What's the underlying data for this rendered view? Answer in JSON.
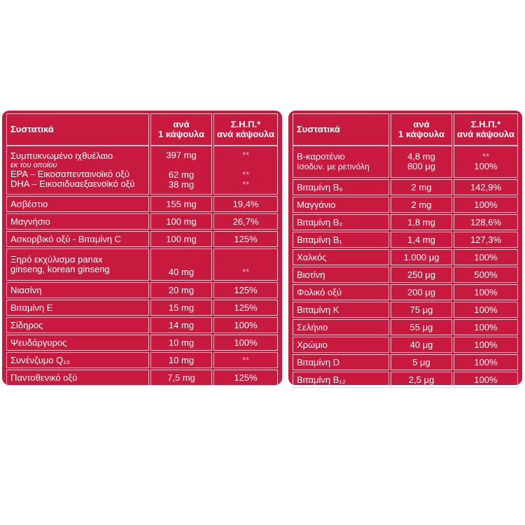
{
  "left": {
    "header": {
      "name": "Συστατικά",
      "amount": "ανά\n1 κάψουλα",
      "rdi": "Σ.Η.Π.*\nανά κάψουλα"
    },
    "row_fishoil": {
      "name1": "Συμπυκνωμένο ιχθυέλαιο",
      "name2": "εκ του οποίου",
      "name3": "EPA – Εικοσαπενταινοϊκό οξύ",
      "name4": "DHA – Εικοσιδυαεξαενοϊκό οξύ",
      "amt1": "397 mg",
      "amt2": "62 mg",
      "amt3": "38 mg",
      "rdi1": "**",
      "rdi2": "**",
      "rdi3": "**"
    },
    "rows": [
      {
        "name": "Ασβέστιο",
        "amount": "155 mg",
        "rdi": "19,4%"
      },
      {
        "name": "Μαγνήσιο",
        "amount": "100 mg",
        "rdi": "26,7%"
      },
      {
        "name": "Ασκορβικό οξύ - Βιταμίνη C",
        "amount": "100 mg",
        "rdi": "125%"
      }
    ],
    "row_ginseng": {
      "name1": "Ξηρό εκχύλισμα panax",
      "name2": "ginseng, korean ginseng",
      "amount": "40 mg",
      "rdi": "**"
    },
    "rows2": [
      {
        "name": "Νιασίνη",
        "amount": "20 mg",
        "rdi": "125%"
      },
      {
        "name": "Βιταμίνη Ε",
        "amount": "15 mg",
        "rdi": "125%"
      },
      {
        "name": "Σίδηρος",
        "amount": "14 mg",
        "rdi": "100%"
      },
      {
        "name": "Ψευδάργυρος",
        "amount": "10 mg",
        "rdi": "100%"
      },
      {
        "name": "Συνένζυμο Q₁₀",
        "amount": "10 mg",
        "rdi": "**"
      },
      {
        "name": "Παντοθενικό οξύ",
        "amount": "7,5 mg",
        "rdi": "125%"
      }
    ]
  },
  "right": {
    "header": {
      "name": "Συστατικά",
      "amount": "ανά\n1 κάψουλα",
      "rdi": "Σ.Η.Π.*\nανά κάψουλα"
    },
    "row_beta": {
      "name1": "Β-καροτένιο",
      "name2": "Ισοδυν. με ρετινόλη",
      "amt1": "4,8 mg",
      "amt2": "800 μg",
      "rdi1": "**",
      "rdi2": "100%"
    },
    "rows": [
      {
        "name": "Βιταμίνη Β₆",
        "amount": "2 mg",
        "rdi": "142,9%"
      },
      {
        "name": "Μαγγάνιο",
        "amount": "2 mg",
        "rdi": "100%"
      },
      {
        "name": "Βιταμίνη Β₂",
        "amount": "1,8 mg",
        "rdi": "128,6%"
      },
      {
        "name": "Βιταμίνη Β₁",
        "amount": "1,4 mg",
        "rdi": "127,3%"
      },
      {
        "name": "Χαλκός",
        "amount": "1.000 μg",
        "rdi": "100%"
      },
      {
        "name": "Βιοτίνη",
        "amount": "250 μg",
        "rdi": "500%"
      },
      {
        "name": "Φολικό οξύ",
        "amount": "200 μg",
        "rdi": "100%"
      },
      {
        "name": "Βιταμίνη Κ",
        "amount": "75 μg",
        "rdi": "100%"
      },
      {
        "name": "Σελήνιο",
        "amount": "55 μg",
        "rdi": "100%"
      },
      {
        "name": "Χρώμιο",
        "amount": "40 μg",
        "rdi": "100%"
      },
      {
        "name": "Βιταμίνη D",
        "amount": "5 μg",
        "rdi": "100%"
      },
      {
        "name": "Βιταμίνη Β₁₂",
        "amount": "2,5 μg",
        "rdi": "100%"
      }
    ]
  }
}
